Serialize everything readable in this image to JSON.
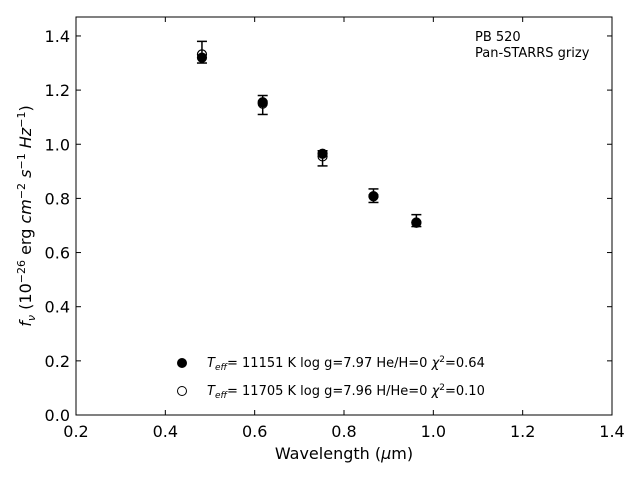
{
  "chart_data": {
    "type": "scatter",
    "title": "",
    "xlabel": "Wavelength (μm)",
    "ylabel": "f_ν (10^-26 erg cm^-2 s^-1 Hz^-1)",
    "xlim": [
      0.2,
      1.4
    ],
    "ylim": [
      0.0,
      1.47
    ],
    "xticks": [
      0.2,
      0.4,
      0.6,
      0.8,
      1.0,
      1.2,
      1.4
    ],
    "xtick_labels": [
      "0.2",
      "0.4",
      "0.6",
      "0.8",
      "1.0",
      "1.2",
      "1.4"
    ],
    "yticks": [
      0.0,
      0.2,
      0.4,
      0.6,
      0.8,
      1.0,
      1.2,
      1.4
    ],
    "ytick_labels": [
      "0.0",
      "0.2",
      "0.4",
      "0.6",
      "0.8",
      "1.0",
      "1.2",
      "1.4"
    ],
    "grid": false,
    "legend_position": "lower-center",
    "annotation": [
      "PB 520",
      "Pan-STARRS grizy"
    ],
    "observed": {
      "x": [
        0.482,
        0.618,
        0.752,
        0.866,
        0.962
      ],
      "y": [
        1.34,
        1.145,
        0.948,
        0.81,
        0.718
      ],
      "yerr": [
        0.04,
        0.035,
        0.028,
        0.025,
        0.022
      ]
    },
    "series": [
      {
        "name": "T_eff= 11151 K  log g=7.97  He/H=0  χ²=0.64",
        "marker": "filled-circle",
        "x": [
          0.482,
          0.618,
          0.752,
          0.866,
          0.962
        ],
        "y": [
          1.32,
          1.155,
          0.965,
          0.808,
          0.711
        ]
      },
      {
        "name": "T_eff= 11705 K  log g=7.96  H/He=0  χ²=0.10",
        "marker": "open-circle",
        "x": [
          0.482,
          0.618,
          0.752,
          0.866,
          0.962
        ],
        "y": [
          1.332,
          1.15,
          0.955,
          0.808,
          0.71
        ]
      }
    ],
    "colors": {
      "marker": "#000000"
    }
  }
}
